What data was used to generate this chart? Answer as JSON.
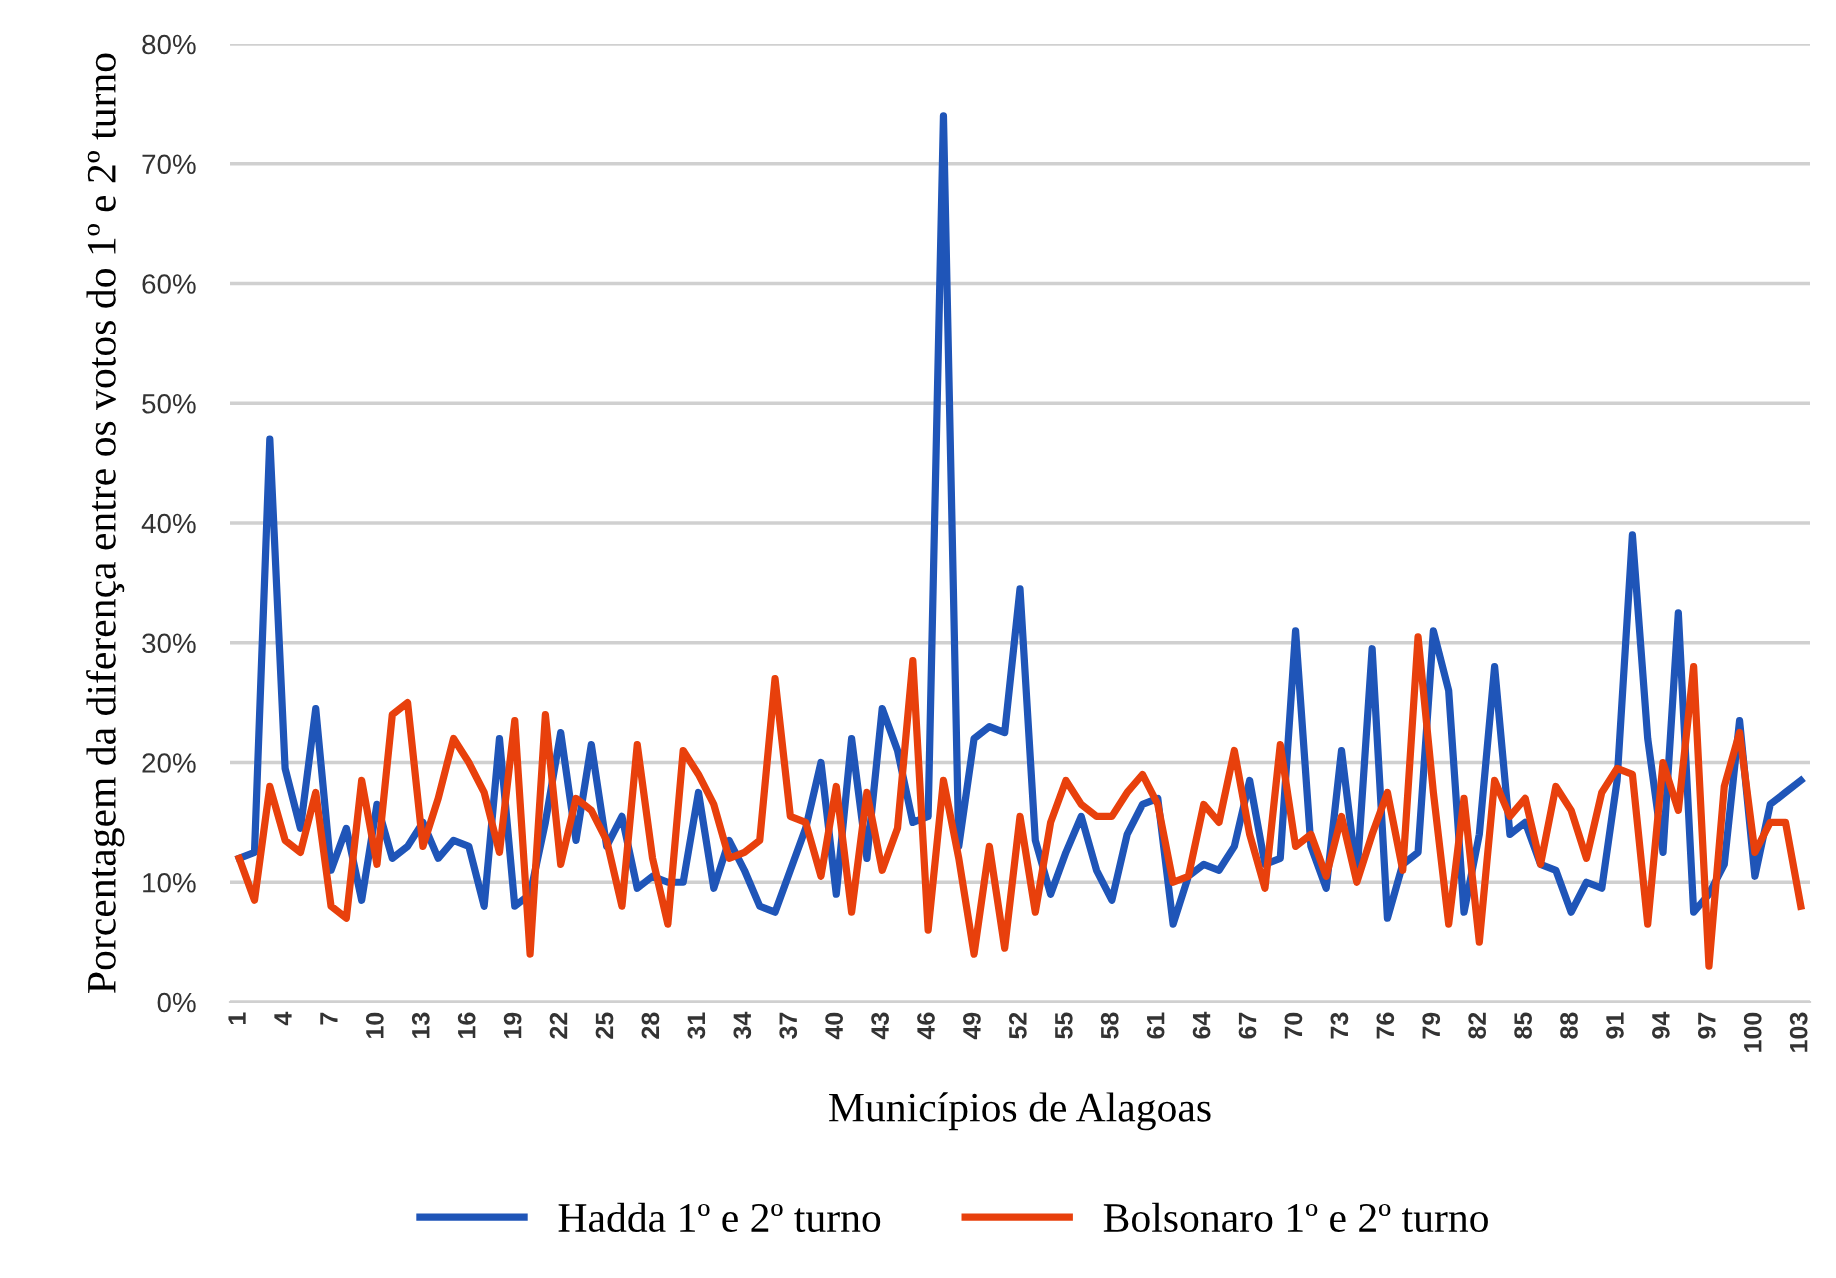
{
  "chart_data": {
    "type": "line",
    "xlabel": "Municípios de Alagoas",
    "ylabel": "Porcentagem da diferença entre os votos do 1º e 2º turno",
    "categories": [
      "1",
      null,
      null,
      "4",
      null,
      null,
      "7",
      null,
      null,
      "10",
      null,
      null,
      "13",
      null,
      null,
      "16",
      null,
      null,
      "19",
      null,
      null,
      "22",
      null,
      null,
      "25",
      null,
      null,
      "28",
      null,
      null,
      "31",
      null,
      null,
      "34",
      null,
      null,
      "37",
      null,
      null,
      "40",
      null,
      null,
      "43",
      null,
      null,
      "46",
      null,
      null,
      "49",
      null,
      null,
      "52",
      null,
      null,
      "55",
      null,
      null,
      "58",
      null,
      null,
      "61",
      null,
      null,
      "64",
      null,
      null,
      "67",
      null,
      null,
      "70",
      null,
      null,
      "73",
      null,
      null,
      "76",
      null,
      null,
      "79",
      null,
      null,
      "82",
      null,
      null,
      "85",
      null,
      null,
      "88",
      null,
      null,
      "91",
      null,
      null,
      "94",
      null,
      null,
      "97",
      null,
      null,
      "100",
      null,
      null,
      "103"
    ],
    "series": [
      {
        "name": "Hadda 1º e 2º turno",
        "color": "#1f55b8",
        "values": [
          12,
          12.5,
          47,
          19.5,
          14.5,
          24.5,
          11,
          14.5,
          8.5,
          16.5,
          12,
          13,
          15,
          12,
          13.5,
          13,
          8,
          22,
          8,
          9,
          15,
          22.5,
          13.5,
          21.5,
          13,
          15.5,
          9.5,
          10.5,
          10,
          10,
          17.5,
          9.5,
          13.5,
          11,
          8,
          7.5,
          11,
          14.5,
          20,
          9,
          22,
          12,
          24.5,
          21,
          15,
          15.5,
          74,
          13,
          22,
          23,
          22.5,
          34.5,
          13.5,
          9,
          12.5,
          15.5,
          11,
          8.5,
          14,
          16.5,
          17,
          6.5,
          10.5,
          11.5,
          11,
          13,
          18.5,
          11.5,
          12,
          31,
          13,
          9.5,
          21,
          10.5,
          29.5,
          7,
          11.5,
          12.5,
          31,
          26,
          7.5,
          14,
          28,
          14,
          15,
          11.5,
          11,
          7.5,
          10,
          9.5,
          18.5,
          39,
          22,
          12.5,
          32.5,
          7.5,
          9,
          11.5,
          23.5,
          10.5,
          16.5,
          17.5,
          18.5
        ]
      },
      {
        "name": "Bolsonaro 1º e 2º turno",
        "color": "#e8400c",
        "values": [
          12,
          8.5,
          18,
          13.5,
          12.5,
          17.5,
          8,
          7,
          18.5,
          11.5,
          24,
          25,
          13,
          17,
          22,
          20,
          17.5,
          12.5,
          23.5,
          4,
          24,
          11.5,
          17,
          16,
          13.5,
          8,
          21.5,
          12,
          6.5,
          21,
          19,
          16.5,
          12,
          12.5,
          13.5,
          27,
          15.5,
          15,
          10.5,
          18,
          7.5,
          17.5,
          11,
          14.5,
          28.5,
          6,
          18.5,
          12,
          4,
          13,
          4.5,
          15.5,
          7.5,
          15,
          18.5,
          16.5,
          15.5,
          15.5,
          17.5,
          19,
          16.5,
          10,
          10.5,
          16.5,
          15,
          21,
          14,
          9.5,
          21.5,
          13,
          14,
          10.5,
          15.5,
          10,
          14,
          17.5,
          11,
          30.5,
          17.5,
          6.5,
          17,
          5,
          18.5,
          15.5,
          17,
          11.5,
          18,
          16,
          12,
          17.5,
          19.5,
          19,
          6.5,
          20,
          16,
          28,
          3,
          18,
          22.5,
          12.5,
          15,
          15,
          8
        ]
      }
    ],
    "ylim": [
      0,
      80
    ],
    "yticks": [
      {
        "value": 0,
        "label": "0%"
      },
      {
        "value": 10,
        "label": "10%"
      },
      {
        "value": 20,
        "label": "20%"
      },
      {
        "value": 30,
        "label": "30%"
      },
      {
        "value": 40,
        "label": "40%"
      },
      {
        "value": 50,
        "label": "50%"
      },
      {
        "value": 60,
        "label": "60%"
      },
      {
        "value": 70,
        "label": "70%"
      },
      {
        "value": 80,
        "label": "80%"
      }
    ],
    "grid": "y",
    "legend": "bottom",
    "line_style": "solid"
  }
}
